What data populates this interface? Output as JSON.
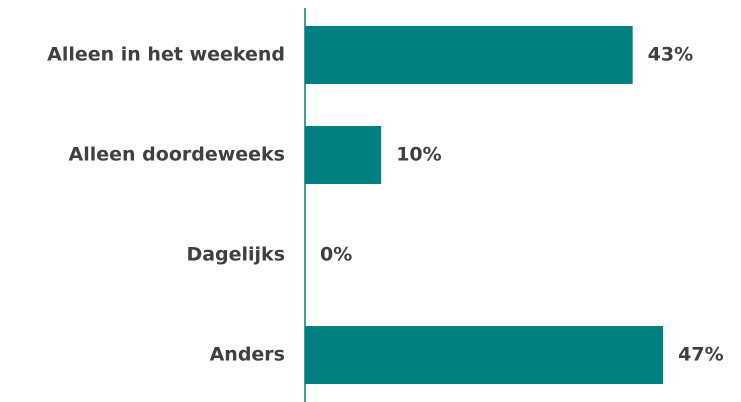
{
  "chart_data": {
    "type": "bar",
    "orientation": "horizontal",
    "categories": [
      "Alleen in het weekend",
      "Alleen doordeweeks",
      "Dagelijks",
      "Anders"
    ],
    "values": [
      43,
      10,
      0,
      47
    ],
    "value_labels": [
      "43%",
      "10%",
      "0%",
      "47%"
    ],
    "color": "#008080",
    "xlim": [
      0,
      50
    ]
  }
}
